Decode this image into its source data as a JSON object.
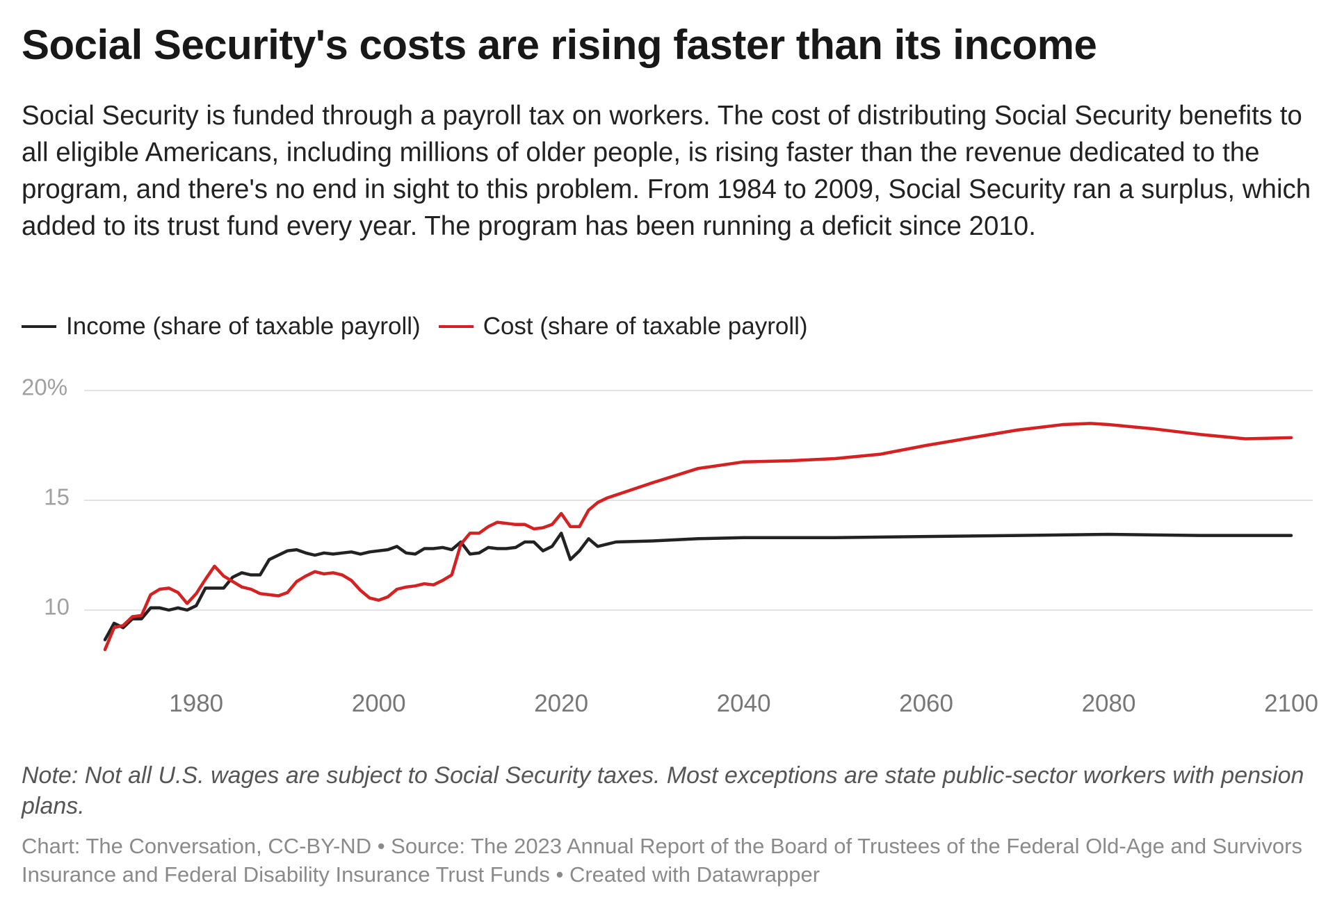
{
  "header": {
    "title": "Social Security's costs are rising faster than its income",
    "description": "Social Security is funded through a payroll tax on workers. The cost of distributing Social Security benefits to all eligible Americans, including millions of older people, is rising faster than the revenue dedicated to the program, and there's no end in sight to this problem. From 1984 to 2009, Social Security ran a surplus, which added to its trust fund every year. The program has been running a deficit since 2010."
  },
  "legend": [
    {
      "label": "Income (share of taxable payroll)",
      "color": "#222222"
    },
    {
      "label": "Cost (share of taxable payroll)",
      "color": "#d42121"
    }
  ],
  "chart_data": {
    "type": "line",
    "title": "Social Security's costs are rising faster than its income",
    "xlabel": "",
    "ylabel": "",
    "xlim": [
      1970,
      2100
    ],
    "ylim": [
      7,
      20
    ],
    "x_ticks": [
      "1980",
      "2000",
      "2020",
      "2040",
      "2060",
      "2080",
      "2100"
    ],
    "x_tick_values": [
      1980,
      2000,
      2020,
      2040,
      2060,
      2080,
      2100
    ],
    "y_ticks": [
      "20%",
      "15",
      "10"
    ],
    "y_tick_values": [
      20,
      15,
      10
    ],
    "grid": true,
    "legend_position": "top-left",
    "series": [
      {
        "name": "Income (share of taxable payroll)",
        "color": "#222222",
        "x": [
          1970,
          1971,
          1972,
          1973,
          1974,
          1975,
          1976,
          1977,
          1978,
          1979,
          1980,
          1981,
          1982,
          1983,
          1984,
          1985,
          1986,
          1987,
          1988,
          1989,
          1990,
          1991,
          1992,
          1993,
          1994,
          1995,
          1996,
          1997,
          1998,
          1999,
          2000,
          2001,
          2002,
          2003,
          2004,
          2005,
          2006,
          2007,
          2008,
          2009,
          2010,
          2011,
          2012,
          2013,
          2014,
          2015,
          2016,
          2017,
          2018,
          2019,
          2020,
          2021,
          2022,
          2023,
          2024,
          2025,
          2026,
          2030,
          2035,
          2040,
          2050,
          2060,
          2070,
          2080,
          2090,
          2100
        ],
        "values": [
          8.65,
          9.4,
          9.2,
          9.6,
          9.6,
          10.1,
          10.1,
          10.0,
          10.1,
          10.0,
          10.2,
          11.0,
          11.0,
          11.0,
          11.5,
          11.7,
          11.6,
          11.6,
          12.3,
          12.5,
          12.7,
          12.75,
          12.6,
          12.5,
          12.6,
          12.55,
          12.6,
          12.65,
          12.55,
          12.65,
          12.7,
          12.75,
          12.9,
          12.6,
          12.55,
          12.8,
          12.8,
          12.85,
          12.75,
          13.1,
          12.55,
          12.6,
          12.85,
          12.8,
          12.8,
          12.85,
          13.1,
          13.1,
          12.7,
          12.9,
          13.5,
          12.3,
          12.7,
          13.25,
          12.9,
          13.0,
          13.1,
          13.15,
          13.25,
          13.3,
          13.3,
          13.35,
          13.4,
          13.45,
          13.4,
          13.4
        ]
      },
      {
        "name": "Cost (share of taxable payroll)",
        "color": "#d42121",
        "x": [
          1970,
          1971,
          1972,
          1973,
          1974,
          1975,
          1976,
          1977,
          1978,
          1979,
          1980,
          1981,
          1982,
          1983,
          1984,
          1985,
          1986,
          1987,
          1988,
          1989,
          1990,
          1991,
          1992,
          1993,
          1994,
          1995,
          1996,
          1997,
          1998,
          1999,
          2000,
          2001,
          2002,
          2003,
          2004,
          2005,
          2006,
          2007,
          2008,
          2009,
          2010,
          2011,
          2012,
          2013,
          2014,
          2015,
          2016,
          2017,
          2018,
          2019,
          2020,
          2021,
          2022,
          2023,
          2024,
          2025,
          2030,
          2035,
          2040,
          2045,
          2050,
          2055,
          2060,
          2065,
          2070,
          2075,
          2078,
          2080,
          2085,
          2090,
          2095,
          2100
        ],
        "values": [
          8.2,
          9.2,
          9.3,
          9.7,
          9.75,
          10.7,
          10.95,
          11.0,
          10.8,
          10.3,
          10.75,
          11.4,
          12.0,
          11.55,
          11.3,
          11.05,
          10.95,
          10.75,
          10.7,
          10.65,
          10.8,
          11.3,
          11.55,
          11.75,
          11.65,
          11.7,
          11.6,
          11.35,
          10.9,
          10.55,
          10.45,
          10.6,
          10.95,
          11.05,
          11.1,
          11.2,
          11.15,
          11.35,
          11.6,
          13.0,
          13.5,
          13.5,
          13.8,
          14.0,
          13.95,
          13.9,
          13.9,
          13.7,
          13.75,
          13.9,
          14.4,
          13.8,
          13.8,
          14.55,
          14.9,
          15.1,
          15.8,
          16.45,
          16.75,
          16.8,
          16.9,
          17.1,
          17.5,
          17.85,
          18.2,
          18.45,
          18.5,
          18.45,
          18.25,
          18.0,
          17.8,
          17.85
        ]
      }
    ]
  },
  "footer": {
    "note": "Note: Not all U.S. wages are subject to Social Security taxes. Most exceptions are state public-sector workers with pension plans.",
    "credit": "Chart: The Conversation, CC-BY-ND • Source: The 2023 Annual Report of the Board of Trustees of the Federal Old-Age and Survivors Insurance and Federal Disability Insurance Trust Funds • Created with Datawrapper"
  }
}
